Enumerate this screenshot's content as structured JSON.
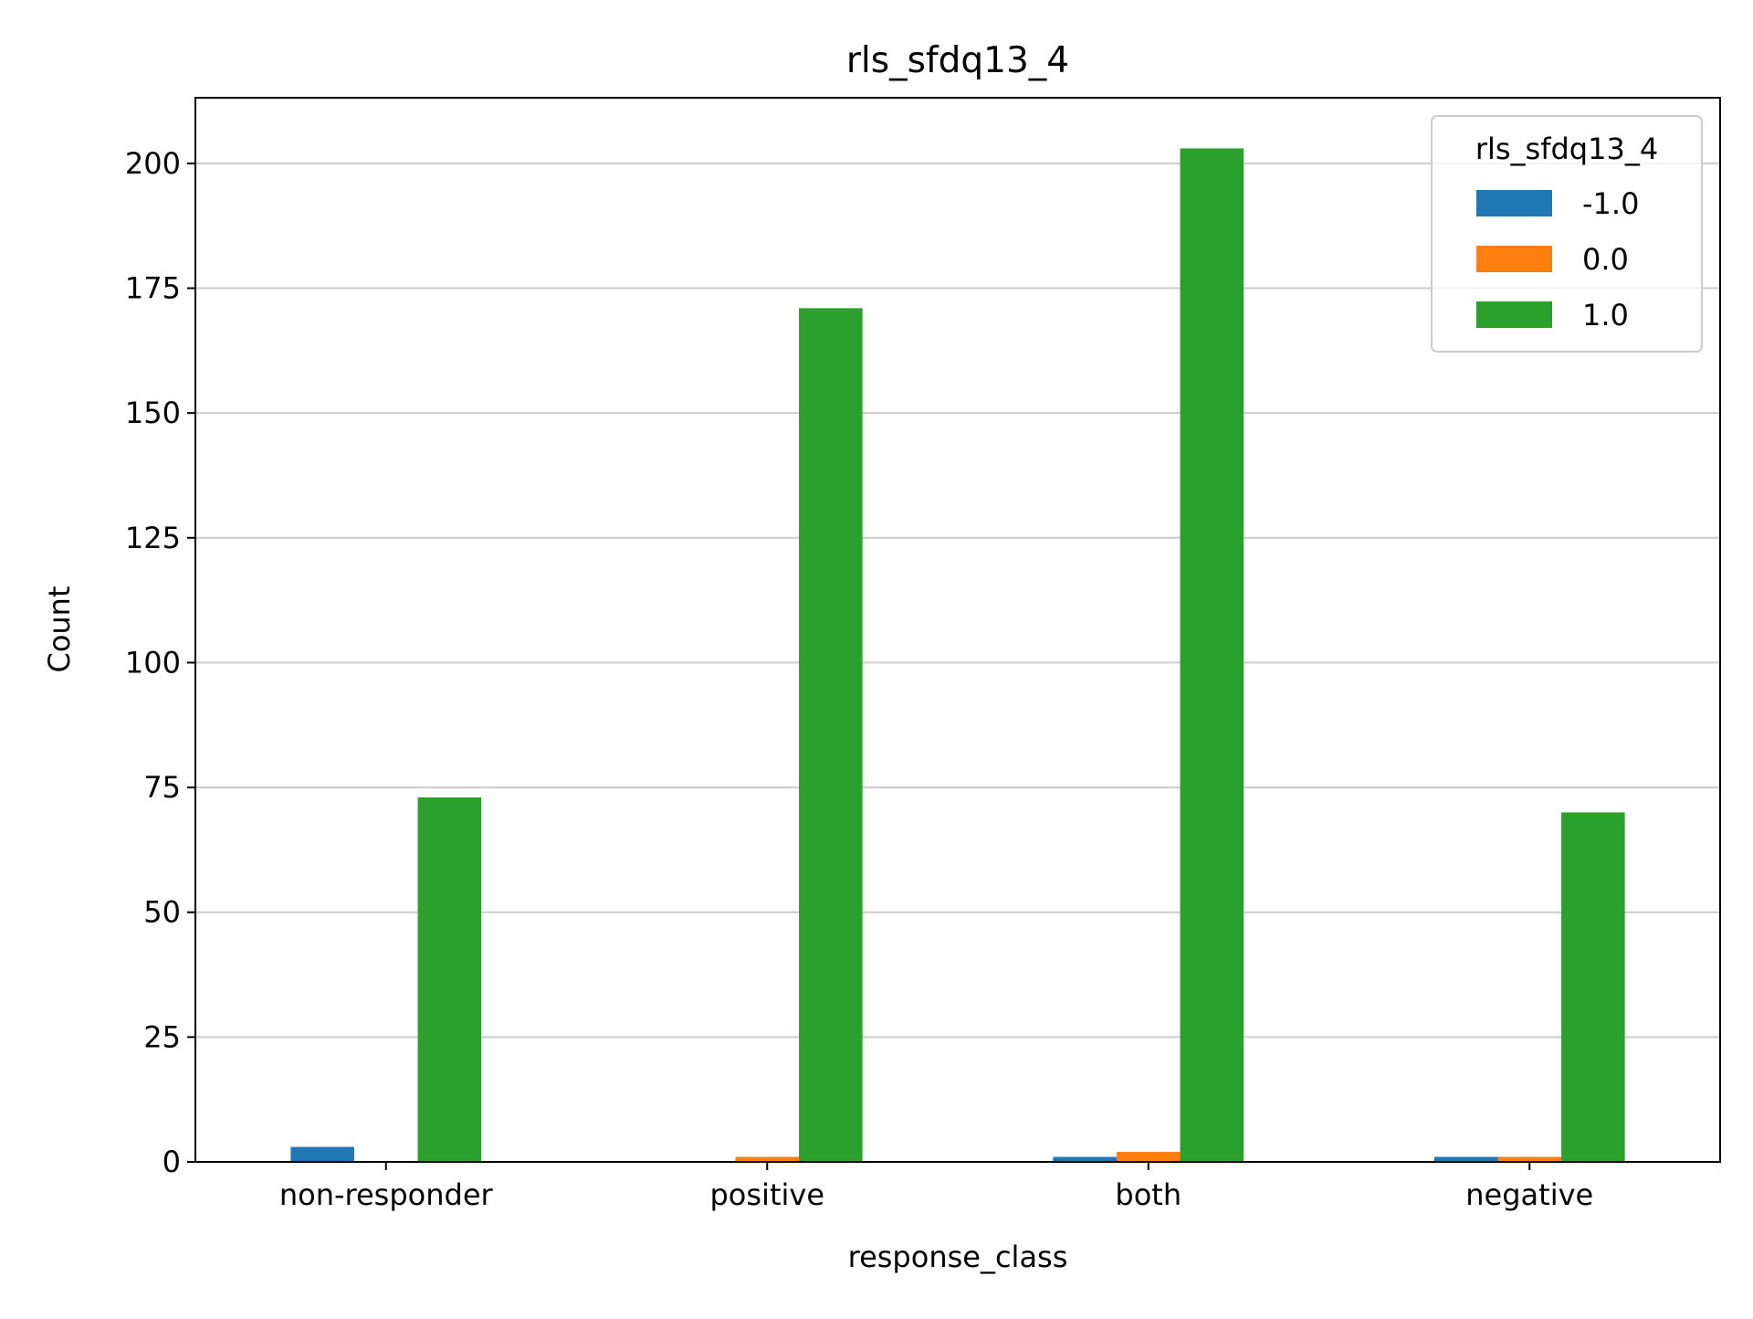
{
  "chart_data": {
    "type": "bar",
    "title": "rls_sfdq13_4",
    "xlabel": "response_class",
    "ylabel": "Count",
    "categories": [
      "non-responder",
      "positive",
      "both",
      "negative"
    ],
    "series": [
      {
        "name": "-1.0",
        "color": "#1f77b4",
        "values": [
          3,
          0,
          1,
          1
        ]
      },
      {
        "name": "0.0",
        "color": "#ff7f0e",
        "values": [
          0,
          1,
          2,
          1
        ]
      },
      {
        "name": "1.0",
        "color": "#2ca02c",
        "values": [
          73,
          171,
          203,
          70
        ]
      }
    ],
    "ylim": [
      0,
      213.15
    ],
    "yticks": [
      0,
      25,
      50,
      75,
      100,
      125,
      150,
      175,
      200
    ],
    "ytick_labels": [
      "0",
      "25",
      "50",
      "75",
      "100",
      "125",
      "150",
      "175",
      "200"
    ],
    "grid": "y-major",
    "legend": {
      "title": "rls_sfdq13_4",
      "placement": "top-right"
    }
  }
}
